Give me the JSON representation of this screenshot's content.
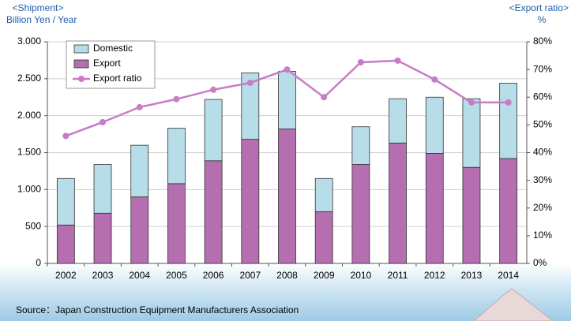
{
  "chart_data": {
    "type": "bar",
    "stacked": true,
    "y_label_heading": "<Shipment>",
    "y_label": "Billion  Yen / Year",
    "y2_label_heading": "<Export ratio>",
    "y2_label": "%",
    "source": "Source：Japan Construction Equipment Manufacturers Association",
    "categories": [
      "2002",
      "2003",
      "2004",
      "2005",
      "2006",
      "2007",
      "2008",
      "2009",
      "2010",
      "2011",
      "2012",
      "2013",
      "2014"
    ],
    "series": [
      {
        "name": "Domestic",
        "color": "#b7dde8",
        "values": [
          630,
          660,
          700,
          750,
          830,
          900,
          780,
          450,
          510,
          600,
          760,
          930,
          1020
        ]
      },
      {
        "name": "Export",
        "color": "#b56fb1",
        "values": [
          520,
          680,
          900,
          1080,
          1390,
          1680,
          1820,
          700,
          1340,
          1630,
          1490,
          1300,
          1420
        ]
      },
      {
        "name": "Export ratio",
        "color": "#c77cc7",
        "axis": "y2",
        "values": [
          46,
          51,
          56.4,
          59.3,
          62.7,
          65.2,
          70,
          60,
          72.6,
          73.2,
          66.4,
          58.1,
          58.1
        ]
      }
    ],
    "stack_order": [
      1,
      0
    ],
    "ylim": [
      0,
      3000
    ],
    "yticks": [
      0,
      500,
      {
        "value": 1000,
        "label": "1.000"
      },
      {
        "value": 1500,
        "label": "1.500"
      },
      {
        "value": 2000,
        "label": "2.000"
      },
      {
        "value": 2500,
        "label": "2.500"
      },
      {
        "value": 3000,
        "label": "3.000"
      }
    ],
    "y2lim": [
      0,
      80
    ],
    "y2ticks": [
      {
        "value": 0,
        "label": "0%"
      },
      {
        "value": 10,
        "label": "10%"
      },
      {
        "value": 20,
        "label": "20%"
      },
      {
        "value": 30,
        "label": "30%"
      },
      {
        "value": 40,
        "label": "40%"
      },
      {
        "value": 50,
        "label": "50%"
      },
      {
        "value": 60,
        "label": "60%"
      },
      {
        "value": 70,
        "label": "70%"
      },
      {
        "value": 80,
        "label": "80%"
      }
    ],
    "grid": true,
    "legend": "top-left"
  }
}
